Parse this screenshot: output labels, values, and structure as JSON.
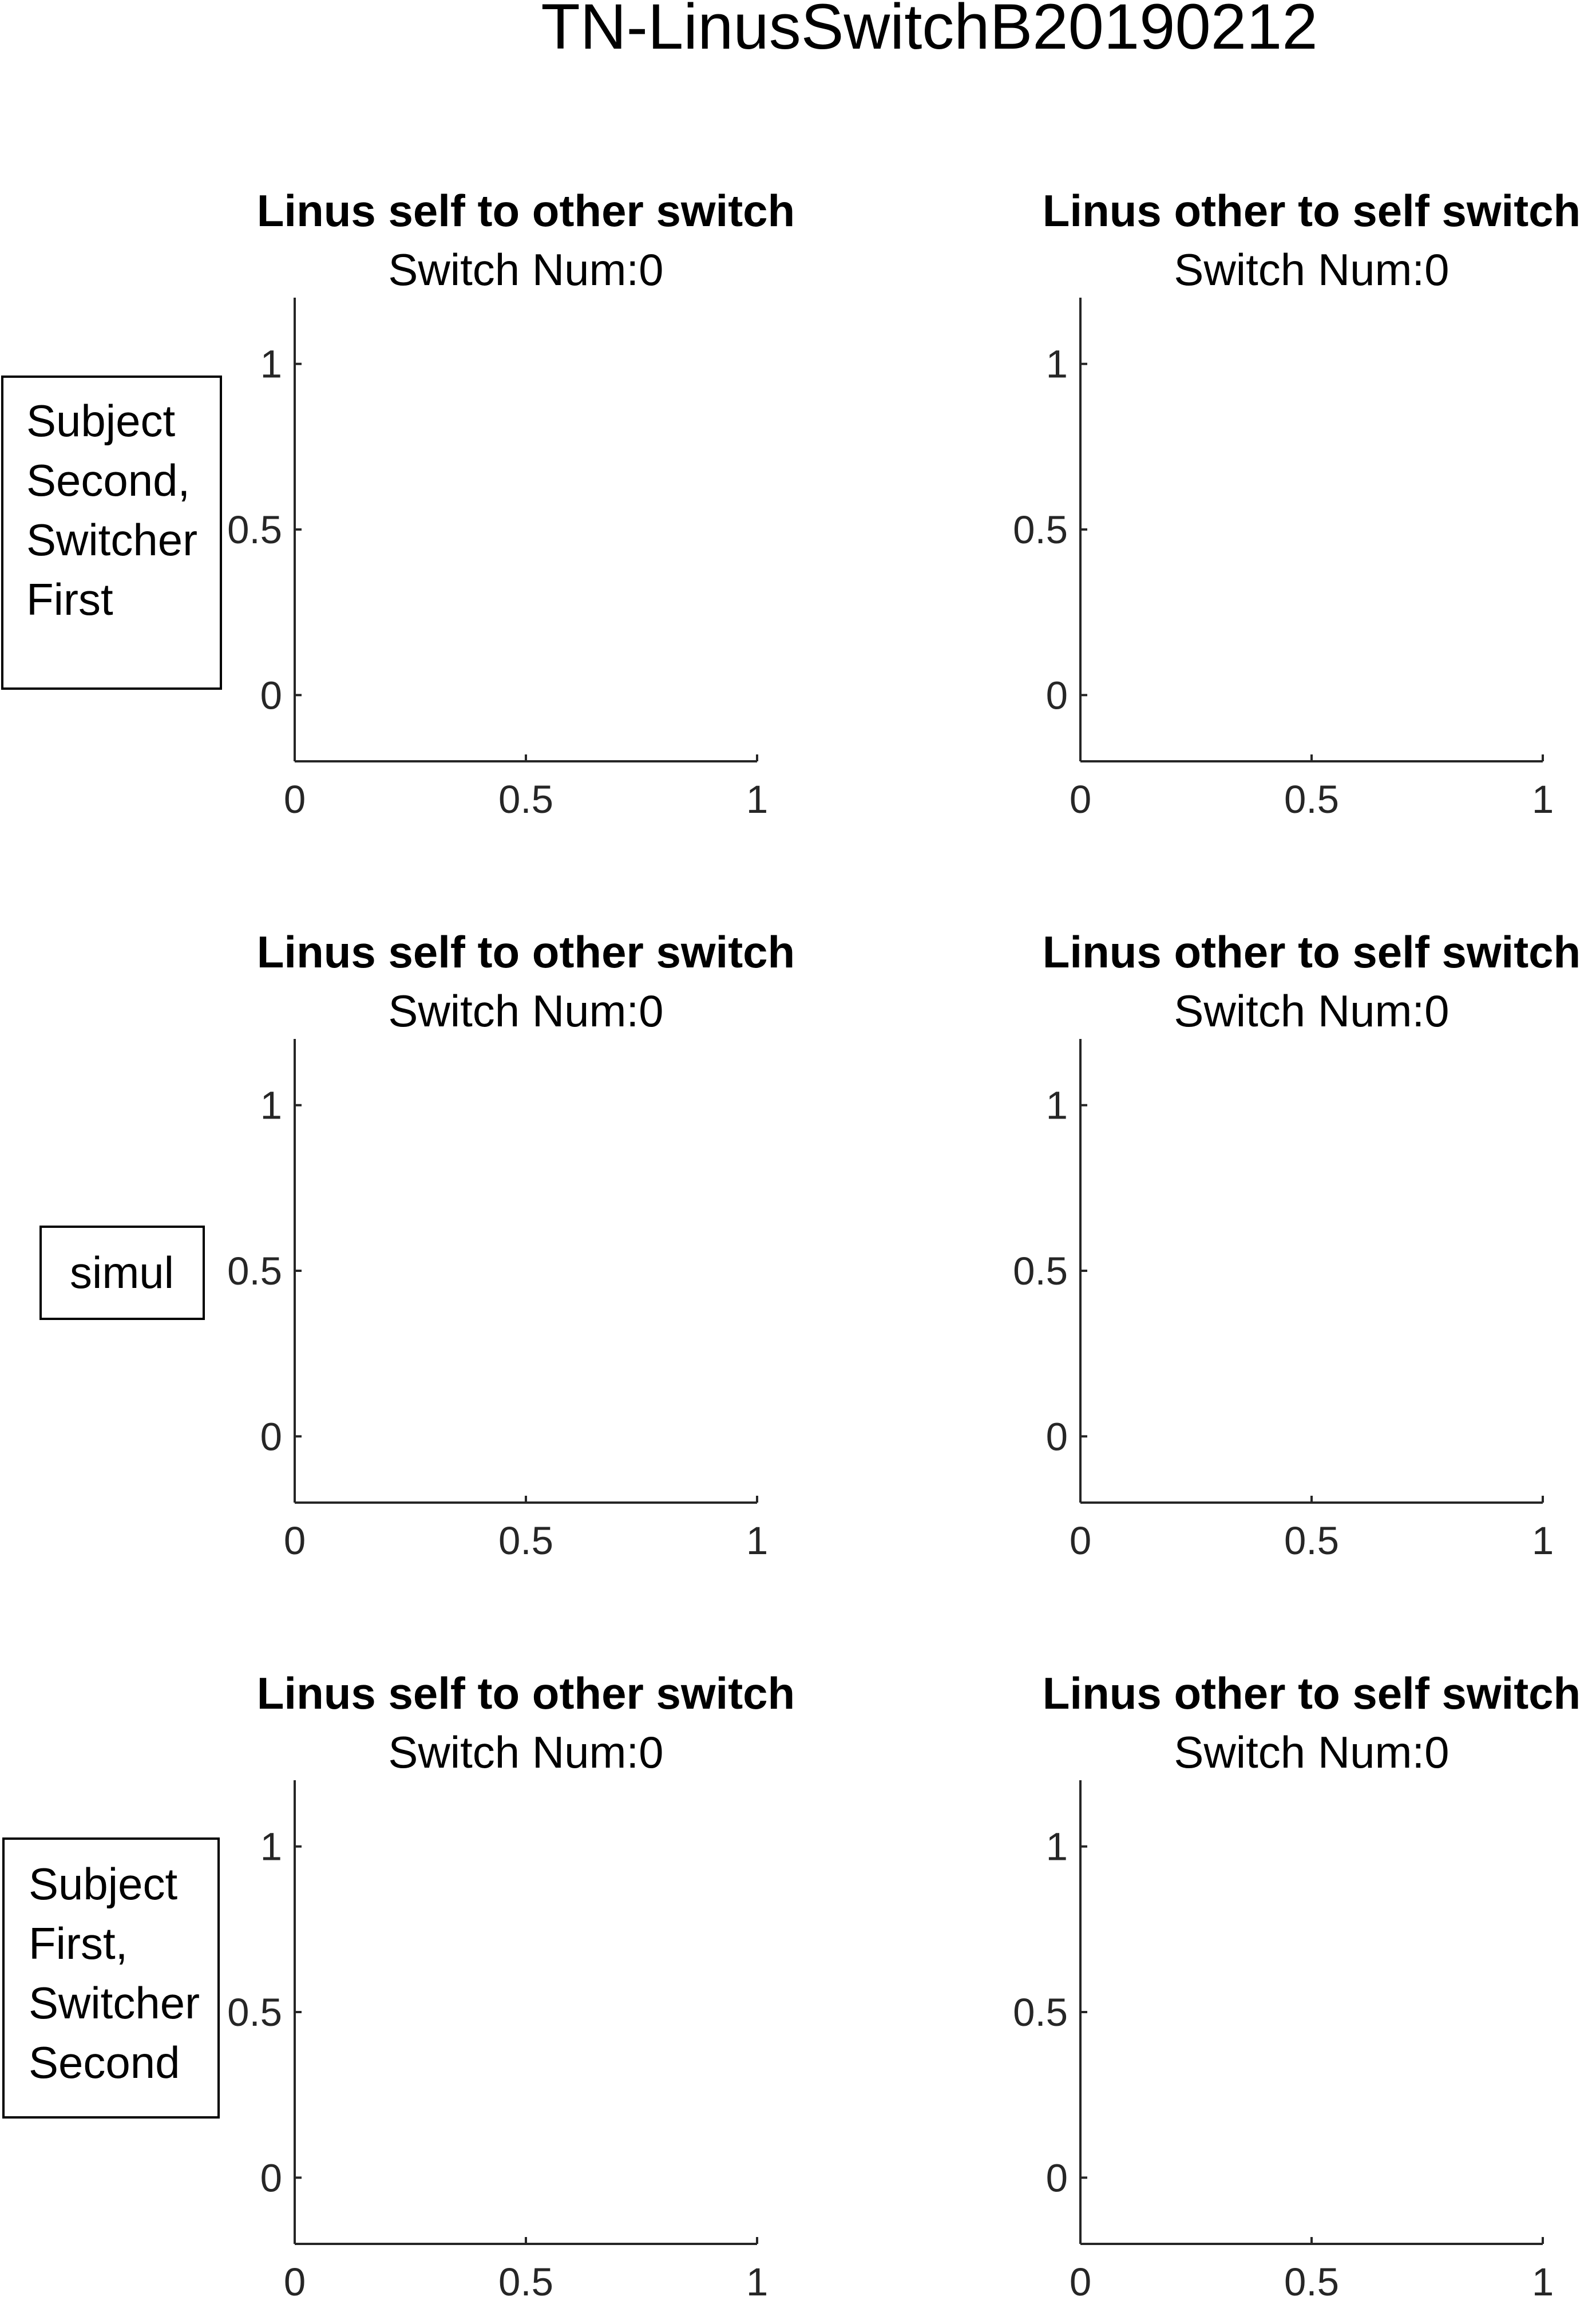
{
  "figure_title": "TN-LinusSwitchB20190212",
  "row_labels": [
    [
      "Subject",
      "Second,",
      "Switcher",
      "First"
    ],
    [
      "simul"
    ],
    [
      "Subject",
      "First,",
      "Switcher",
      "Second"
    ]
  ],
  "chart_data": [
    {
      "type": "scatter",
      "title": "Linus self to other switch",
      "subtitle": "Switch Num:0",
      "xlabel": "",
      "ylabel": "",
      "xlim": [
        0,
        1
      ],
      "ylim": [
        -0.2,
        1.2
      ],
      "xticks": [
        "0",
        "0.5",
        "1"
      ],
      "yticks": [
        "0",
        "0.5",
        "1"
      ],
      "series": [],
      "grid": false
    },
    {
      "type": "scatter",
      "title": "Linus other to self switch",
      "subtitle": "Switch Num:0",
      "xlabel": "",
      "ylabel": "",
      "xlim": [
        0,
        1
      ],
      "ylim": [
        -0.2,
        1.2
      ],
      "xticks": [
        "0",
        "0.5",
        "1"
      ],
      "yticks": [
        "0",
        "0.5",
        "1"
      ],
      "series": [],
      "grid": false
    },
    {
      "type": "scatter",
      "title": "Linus self to other switch",
      "subtitle": "Switch Num:0",
      "xlabel": "",
      "ylabel": "",
      "xlim": [
        0,
        1
      ],
      "ylim": [
        -0.2,
        1.2
      ],
      "xticks": [
        "0",
        "0.5",
        "1"
      ],
      "yticks": [
        "0",
        "0.5",
        "1"
      ],
      "series": [],
      "grid": false
    },
    {
      "type": "scatter",
      "title": "Linus other to self switch",
      "subtitle": "Switch Num:0",
      "xlabel": "",
      "ylabel": "",
      "xlim": [
        0,
        1
      ],
      "ylim": [
        -0.2,
        1.2
      ],
      "xticks": [
        "0",
        "0.5",
        "1"
      ],
      "yticks": [
        "0",
        "0.5",
        "1"
      ],
      "series": [],
      "grid": false
    },
    {
      "type": "scatter",
      "title": "Linus self to other switch",
      "subtitle": "Switch Num:0",
      "xlabel": "",
      "ylabel": "",
      "xlim": [
        0,
        1
      ],
      "ylim": [
        -0.2,
        1.2
      ],
      "xticks": [
        "0",
        "0.5",
        "1"
      ],
      "yticks": [
        "0",
        "0.5",
        "1"
      ],
      "series": [],
      "grid": false
    },
    {
      "type": "scatter",
      "title": "Linus other to self switch",
      "subtitle": "Switch Num:0",
      "xlabel": "",
      "ylabel": "",
      "xlim": [
        0,
        1
      ],
      "ylim": [
        -0.2,
        1.2
      ],
      "xticks": [
        "0",
        "0.5",
        "1"
      ],
      "yticks": [
        "0",
        "0.5",
        "1"
      ],
      "series": [],
      "grid": false
    }
  ]
}
